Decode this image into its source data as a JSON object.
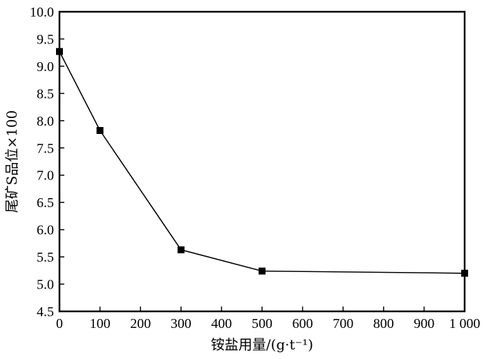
{
  "chart_data": {
    "type": "line",
    "title": "",
    "xlabel": "铵盐用量/(g·t⁻¹)",
    "ylabel": "尾矿S品位×100",
    "xlim": [
      0,
      1000
    ],
    "ylim": [
      4.5,
      10.0
    ],
    "x_ticks": [
      0,
      100,
      200,
      300,
      400,
      500,
      600,
      700,
      800,
      900,
      1000
    ],
    "x_tick_labels": [
      "0",
      "100",
      "200",
      "300",
      "400",
      "500",
      "600",
      "700",
      "800",
      "900",
      "1 000"
    ],
    "y_ticks": [
      4.5,
      5.0,
      5.5,
      6.0,
      6.5,
      7.0,
      7.5,
      8.0,
      8.5,
      9.0,
      9.5,
      10.0
    ],
    "y_tick_labels": [
      "4.5",
      "5.0",
      "5.5",
      "6.0",
      "6.5",
      "7.0",
      "7.5",
      "8.0",
      "8.5",
      "9.0",
      "9.5",
      "10.0"
    ],
    "grid": false,
    "series": [
      {
        "marker": "square",
        "color": "#000000",
        "x": [
          0,
          100,
          300,
          500,
          1000
        ],
        "y": [
          9.27,
          7.82,
          5.63,
          5.24,
          5.2
        ]
      }
    ]
  }
}
